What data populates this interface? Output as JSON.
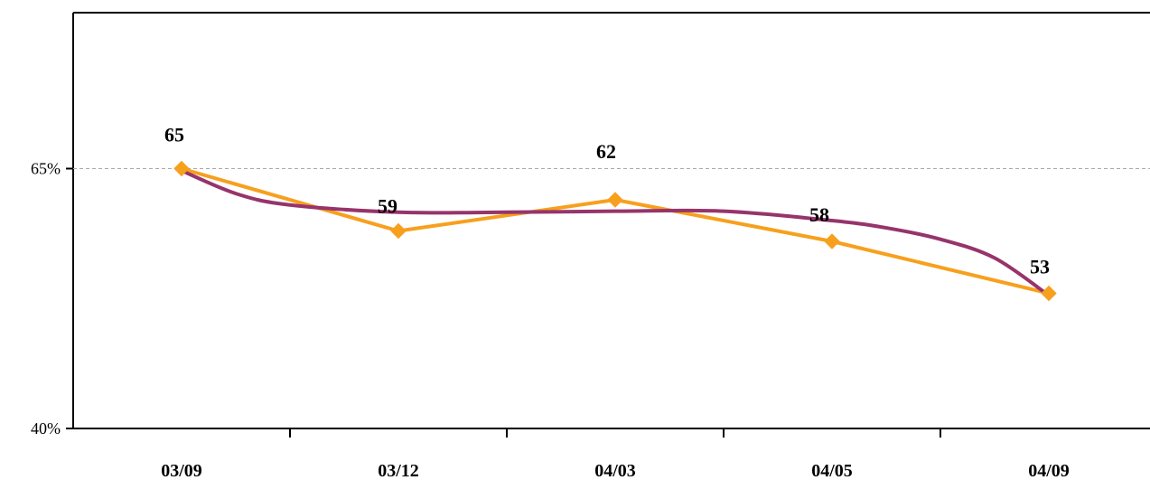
{
  "chart_data": {
    "type": "line",
    "title": "",
    "xlabel": "",
    "ylabel": "",
    "categories": [
      "03/09",
      "03/12",
      "04/03",
      "04/05",
      "04/09"
    ],
    "ylim": [
      40,
      80
    ],
    "y_ticks": [
      {
        "value": 40,
        "label": "40%"
      },
      {
        "value": 65,
        "label": "65%"
      }
    ],
    "reference_line": {
      "value": 65,
      "style": "dashed",
      "color": "#aaaaaa"
    },
    "series": [
      {
        "values": [
          65,
          59,
          62,
          58,
          53
        ],
        "labels": [
          "65",
          "59",
          "62",
          "58",
          "53"
        ],
        "color": "#f7a01e",
        "marker": "diamond"
      }
    ],
    "trendline": {
      "type": "polynomial",
      "color": "#96346b",
      "values": [
        64.8,
        60.8,
        60.9,
        60.0,
        52.8
      ],
      "control_points": [
        [
          0,
          64.8
        ],
        [
          0.25,
          62.6
        ],
        [
          0.5,
          61.5
        ],
        [
          1,
          60.8
        ],
        [
          1.5,
          60.8
        ],
        [
          2,
          60.9
        ],
        [
          2.5,
          60.9
        ],
        [
          3,
          60.0
        ],
        [
          3.25,
          59.3
        ],
        [
          3.5,
          58.2
        ],
        [
          3.75,
          56.4
        ],
        [
          4,
          52.8
        ]
      ]
    },
    "grid": false,
    "legend": "none",
    "axis_color": "#000000"
  }
}
